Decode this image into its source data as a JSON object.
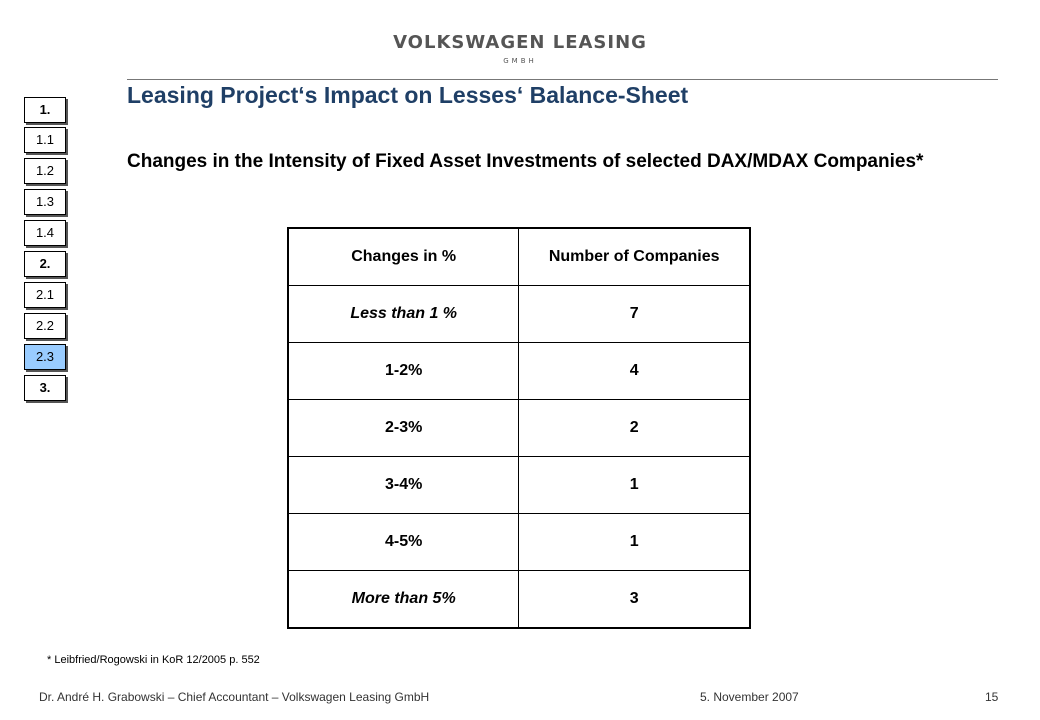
{
  "header": {
    "logo_main": "VOLKSWAGEN LEASING",
    "logo_sub": "GMBH"
  },
  "slide": {
    "title": "Leasing Project‘s Impact on Lesses‘ Balance-Sheet",
    "subtitle": "Changes in the Intensity of Fixed Asset Investments of selected DAX/MDAX Companies*"
  },
  "nav": {
    "items": [
      {
        "label": "1."
      },
      {
        "label": "1.1"
      },
      {
        "label": "1.2"
      },
      {
        "label": "1.3"
      },
      {
        "label": "1.4"
      },
      {
        "label": "2."
      },
      {
        "label": "2.1"
      },
      {
        "label": "2.2"
      },
      {
        "label": "2.3"
      },
      {
        "label": "3."
      }
    ],
    "active_label": "2.3",
    "active_color": "#99ccff"
  },
  "table": {
    "headers": [
      "Changes in %",
      "Number of Companies"
    ],
    "rows": [
      {
        "range": "Less than 1 %",
        "count": "7"
      },
      {
        "range": "1-2%",
        "count": "4"
      },
      {
        "range": "2-3%",
        "count": "2"
      },
      {
        "range": "3-4%",
        "count": "1"
      },
      {
        "range": "4-5%",
        "count": "1"
      },
      {
        "range": "More than 5%",
        "count": "3"
      }
    ]
  },
  "footnote": "* Leibfried/Rogowski in KoR 12/2005 p. 552",
  "footer": {
    "author": "Dr. André H. Grabowski – Chief Accountant – Volkswagen Leasing GmbH",
    "date": "5. November 2007",
    "page_number": "15"
  },
  "colors": {
    "title": "#1f3f66",
    "logo": "#555555"
  }
}
